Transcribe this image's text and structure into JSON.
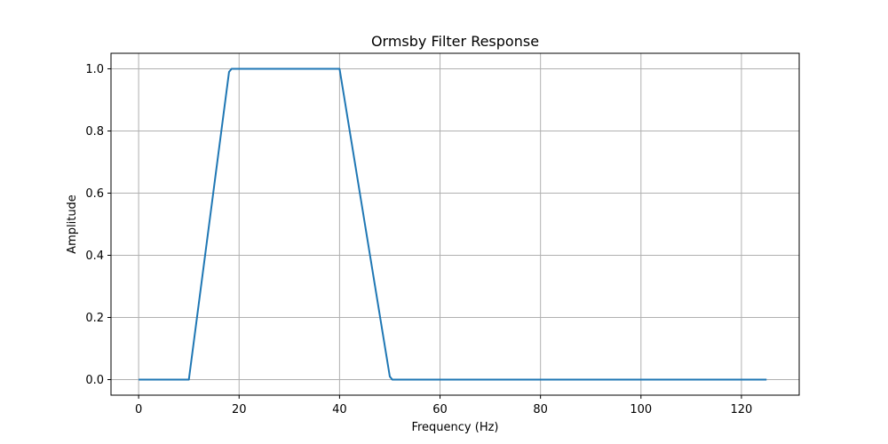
{
  "chart_data": {
    "type": "line",
    "title": "Ormsby Filter Response",
    "xlabel": "Frequency (Hz)",
    "ylabel": "Amplitude",
    "xlim": [
      -5.5,
      131.5
    ],
    "ylim": [
      -0.05,
      1.05
    ],
    "xticks": [
      0,
      20,
      40,
      60,
      80,
      100,
      120
    ],
    "yticks": [
      0.0,
      0.2,
      0.4,
      0.6,
      0.8,
      1.0
    ],
    "xtick_labels": [
      "0",
      "20",
      "40",
      "60",
      "80",
      "100",
      "120"
    ],
    "ytick_labels": [
      "0.0",
      "0.2",
      "0.4",
      "0.6",
      "0.8",
      "1.0"
    ],
    "grid": true,
    "series": [
      {
        "color": "#1f77b4",
        "x": [
          0,
          10,
          18,
          18.5,
          40,
          50,
          50.5,
          125
        ],
        "y": [
          0,
          0,
          0.99,
          1.0,
          1.0,
          0.01,
          0,
          0
        ]
      }
    ]
  }
}
